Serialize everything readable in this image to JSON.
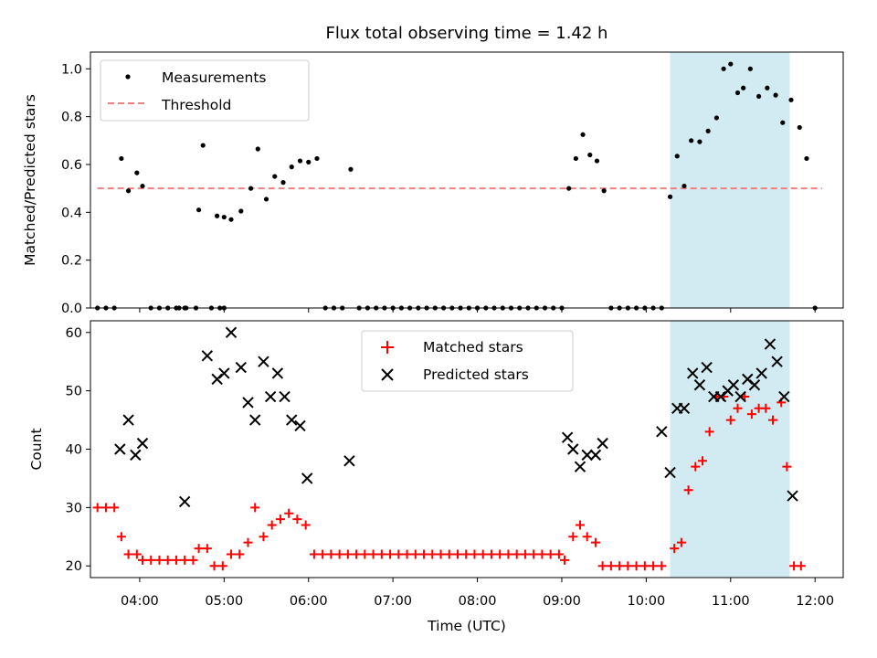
{
  "chart_data": [
    {
      "type": "scatter",
      "title": "Flux total observing time = 1.42 h",
      "ylabel": "Matched/Predicted stars",
      "xlabel": "",
      "x_axis": "time",
      "xlim": [
        "03:25",
        "12:20"
      ],
      "ylim": [
        0,
        1.07
      ],
      "y_ticks": [
        0.0,
        0.2,
        0.4,
        0.6,
        0.8,
        1.0
      ],
      "y_tick_labels": [
        "0.0",
        "0.2",
        "0.4",
        "0.6",
        "0.8",
        "1.0"
      ],
      "grid": false,
      "legend_position": "upper-left",
      "highlight_span": {
        "start": "10:17",
        "end": "11:42",
        "color": "#add8e6"
      },
      "series": [
        {
          "name": "Measurements",
          "marker": "dot",
          "color": "#000000",
          "points": [
            [
              "03:30",
              0
            ],
            [
              "03:36",
              0
            ],
            [
              "03:42",
              0
            ],
            [
              "03:47",
              0.625
            ],
            [
              "03:52",
              0.49
            ],
            [
              "03:58",
              0.565
            ],
            [
              "04:02",
              0.51
            ],
            [
              "04:08",
              0
            ],
            [
              "04:14",
              0
            ],
            [
              "04:20",
              0
            ],
            [
              "04:26",
              0
            ],
            [
              "04:32",
              0
            ],
            [
              "04:28",
              0
            ],
            [
              "04:33",
              0
            ],
            [
              "04:40",
              0
            ],
            [
              "04:45",
              0.68
            ],
            [
              "04:51",
              0
            ],
            [
              "04:57",
              0
            ],
            [
              "05:00",
              0
            ],
            [
              "04:42",
              0.41
            ],
            [
              "04:55",
              0.385
            ],
            [
              "05:00",
              0.38
            ],
            [
              "05:05",
              0.37
            ],
            [
              "05:12",
              0.405
            ],
            [
              "05:19",
              0.5
            ],
            [
              "05:24",
              0.665
            ],
            [
              "05:30",
              0.455
            ],
            [
              "05:36",
              0.55
            ],
            [
              "05:42",
              0.525
            ],
            [
              "05:48",
              0.59
            ],
            [
              "05:54",
              0.615
            ],
            [
              "06:00",
              0.61
            ],
            [
              "06:06",
              0.625
            ],
            [
              "06:12",
              0
            ],
            [
              "06:18",
              0
            ],
            [
              "06:24",
              0
            ],
            [
              "06:30",
              0.58
            ],
            [
              "06:36",
              0
            ],
            [
              "06:42",
              0
            ],
            [
              "06:48",
              0
            ],
            [
              "06:54",
              0
            ],
            [
              "07:00",
              0
            ],
            [
              "07:06",
              0
            ],
            [
              "07:12",
              0
            ],
            [
              "07:18",
              0
            ],
            [
              "07:24",
              0
            ],
            [
              "07:30",
              0
            ],
            [
              "07:36",
              0
            ],
            [
              "07:42",
              0
            ],
            [
              "07:48",
              0
            ],
            [
              "07:54",
              0
            ],
            [
              "08:00",
              0
            ],
            [
              "08:06",
              0
            ],
            [
              "08:12",
              0
            ],
            [
              "08:18",
              0
            ],
            [
              "08:24",
              0
            ],
            [
              "08:30",
              0
            ],
            [
              "08:36",
              0
            ],
            [
              "08:42",
              0
            ],
            [
              "08:48",
              0
            ],
            [
              "08:54",
              0
            ],
            [
              "09:00",
              0
            ],
            [
              "09:05",
              0.5
            ],
            [
              "09:10",
              0.625
            ],
            [
              "09:15",
              0.725
            ],
            [
              "09:20",
              0.64
            ],
            [
              "09:25",
              0.615
            ],
            [
              "09:30",
              0.49
            ],
            [
              "09:35",
              0
            ],
            [
              "09:41",
              0
            ],
            [
              "09:47",
              0
            ],
            [
              "09:53",
              0
            ],
            [
              "09:59",
              0
            ],
            [
              "10:05",
              0
            ],
            [
              "10:11",
              0
            ],
            [
              "10:17",
              0.465
            ],
            [
              "10:22",
              0.635
            ],
            [
              "10:27",
              0.51
            ],
            [
              "10:32",
              0.7
            ],
            [
              "10:38",
              0.695
            ],
            [
              "10:44",
              0.74
            ],
            [
              "10:50",
              0.795
            ],
            [
              "10:55",
              1.0
            ],
            [
              "11:00",
              1.02
            ],
            [
              "11:05",
              0.9
            ],
            [
              "11:09",
              0.92
            ],
            [
              "11:14",
              1.0
            ],
            [
              "11:20",
              0.885
            ],
            [
              "11:26",
              0.92
            ],
            [
              "11:32",
              0.89
            ],
            [
              "11:37",
              0.775
            ],
            [
              "11:43",
              0.87
            ],
            [
              "11:49",
              0.755
            ],
            [
              "11:54",
              0.625
            ],
            [
              "12:00",
              0
            ]
          ]
        },
        {
          "name": "Threshold",
          "marker": "dashed-line",
          "color": "#f08080",
          "x": [
            "03:30",
            "12:05"
          ],
          "y": [
            0.5,
            0.5
          ]
        }
      ]
    },
    {
      "type": "scatter",
      "title": "",
      "ylabel": "Count",
      "xlabel": "Time (UTC)",
      "x_axis": "time",
      "xlim": [
        "03:25",
        "12:20"
      ],
      "ylim": [
        18,
        62
      ],
      "y_ticks": [
        20,
        30,
        40,
        50,
        60
      ],
      "y_tick_labels": [
        "20",
        "30",
        "40",
        "50",
        "60"
      ],
      "x_ticks": [
        "04:00",
        "05:00",
        "06:00",
        "07:00",
        "08:00",
        "09:00",
        "10:00",
        "11:00",
        "12:00"
      ],
      "x_tick_labels": [
        "04:00",
        "05:00",
        "06:00",
        "07:00",
        "08:00",
        "09:00",
        "10:00",
        "11:00",
        "12:00"
      ],
      "grid": false,
      "legend_position": "upper-center",
      "highlight_span": {
        "start": "10:17",
        "end": "11:42",
        "color": "#add8e6"
      },
      "series": [
        {
          "name": "Matched stars",
          "marker": "plus",
          "color": "#ff0000",
          "points": [
            [
              "03:30",
              30
            ],
            [
              "03:36",
              30
            ],
            [
              "03:42",
              30
            ],
            [
              "03:47",
              25
            ],
            [
              "03:52",
              22
            ],
            [
              "03:58",
              22
            ],
            [
              "04:02",
              21
            ],
            [
              "04:08",
              21
            ],
            [
              "04:14",
              21
            ],
            [
              "04:20",
              21
            ],
            [
              "04:26",
              21
            ],
            [
              "04:32",
              21
            ],
            [
              "04:38",
              21
            ],
            [
              "04:42",
              23
            ],
            [
              "04:48",
              23
            ],
            [
              "04:53",
              20
            ],
            [
              "04:59",
              20
            ],
            [
              "05:05",
              22
            ],
            [
              "05:11",
              22
            ],
            [
              "05:17",
              24
            ],
            [
              "05:22",
              30
            ],
            [
              "05:28",
              25
            ],
            [
              "05:34",
              27
            ],
            [
              "05:40",
              28
            ],
            [
              "05:46",
              29
            ],
            [
              "05:52",
              28
            ],
            [
              "05:58",
              27
            ],
            [
              "06:04",
              22
            ],
            [
              "06:10",
              22
            ],
            [
              "06:16",
              22
            ],
            [
              "06:22",
              22
            ],
            [
              "06:28",
              22
            ],
            [
              "06:34",
              22
            ],
            [
              "06:40",
              22
            ],
            [
              "06:46",
              22
            ],
            [
              "06:52",
              22
            ],
            [
              "06:58",
              22
            ],
            [
              "07:04",
              22
            ],
            [
              "07:10",
              22
            ],
            [
              "07:16",
              22
            ],
            [
              "07:22",
              22
            ],
            [
              "07:28",
              22
            ],
            [
              "07:34",
              22
            ],
            [
              "07:40",
              22
            ],
            [
              "07:46",
              22
            ],
            [
              "07:52",
              22
            ],
            [
              "07:58",
              22
            ],
            [
              "08:04",
              22
            ],
            [
              "08:10",
              22
            ],
            [
              "08:16",
              22
            ],
            [
              "08:22",
              22
            ],
            [
              "08:28",
              22
            ],
            [
              "08:34",
              22
            ],
            [
              "08:40",
              22
            ],
            [
              "08:46",
              22
            ],
            [
              "08:52",
              22
            ],
            [
              "08:58",
              22
            ],
            [
              "09:02",
              21
            ],
            [
              "09:08",
              25
            ],
            [
              "09:13",
              27
            ],
            [
              "09:18",
              25
            ],
            [
              "09:24",
              24
            ],
            [
              "09:29",
              20
            ],
            [
              "09:35",
              20
            ],
            [
              "09:41",
              20
            ],
            [
              "09:47",
              20
            ],
            [
              "09:53",
              20
            ],
            [
              "09:59",
              20
            ],
            [
              "10:05",
              20
            ],
            [
              "10:11",
              20
            ],
            [
              "10:20",
              23
            ],
            [
              "10:25",
              24
            ],
            [
              "10:30",
              33
            ],
            [
              "10:35",
              37
            ],
            [
              "10:40",
              38
            ],
            [
              "10:45",
              43
            ],
            [
              "10:50",
              49
            ],
            [
              "10:55",
              49
            ],
            [
              "11:00",
              45
            ],
            [
              "11:05",
              47
            ],
            [
              "11:10",
              49
            ],
            [
              "11:15",
              46
            ],
            [
              "11:20",
              47
            ],
            [
              "11:25",
              47
            ],
            [
              "11:30",
              45
            ],
            [
              "11:36",
              48
            ],
            [
              "11:40",
              37
            ],
            [
              "11:45",
              20
            ],
            [
              "11:50",
              20
            ]
          ]
        },
        {
          "name": "Predicted stars",
          "marker": "x",
          "color": "#000000",
          "points": [
            [
              "03:46",
              40
            ],
            [
              "03:52",
              45
            ],
            [
              "03:57",
              39
            ],
            [
              "04:02",
              41
            ],
            [
              "04:32",
              31
            ],
            [
              "04:48",
              56
            ],
            [
              "04:55",
              52
            ],
            [
              "05:00",
              53
            ],
            [
              "05:05",
              60
            ],
            [
              "05:12",
              54
            ],
            [
              "05:17",
              48
            ],
            [
              "05:22",
              45
            ],
            [
              "05:28",
              55
            ],
            [
              "05:33",
              49
            ],
            [
              "05:38",
              53
            ],
            [
              "05:43",
              49
            ],
            [
              "05:48",
              45
            ],
            [
              "05:54",
              44
            ],
            [
              "05:59",
              35
            ],
            [
              "06:29",
              38
            ],
            [
              "09:04",
              42
            ],
            [
              "09:08",
              40
            ],
            [
              "09:13",
              37
            ],
            [
              "09:18",
              39
            ],
            [
              "09:24",
              39
            ],
            [
              "09:29",
              41
            ],
            [
              "10:11",
              43
            ],
            [
              "10:17",
              36
            ],
            [
              "10:22",
              47
            ],
            [
              "10:27",
              47
            ],
            [
              "10:33",
              53
            ],
            [
              "10:38",
              51
            ],
            [
              "10:43",
              54
            ],
            [
              "10:48",
              49
            ],
            [
              "10:53",
              49
            ],
            [
              "10:58",
              50
            ],
            [
              "11:02",
              51
            ],
            [
              "11:07",
              49
            ],
            [
              "11:12",
              52
            ],
            [
              "11:17",
              51
            ],
            [
              "11:22",
              53
            ],
            [
              "11:28",
              58
            ],
            [
              "11:33",
              55
            ],
            [
              "11:38",
              49
            ],
            [
              "11:44",
              32
            ]
          ]
        }
      ]
    }
  ]
}
